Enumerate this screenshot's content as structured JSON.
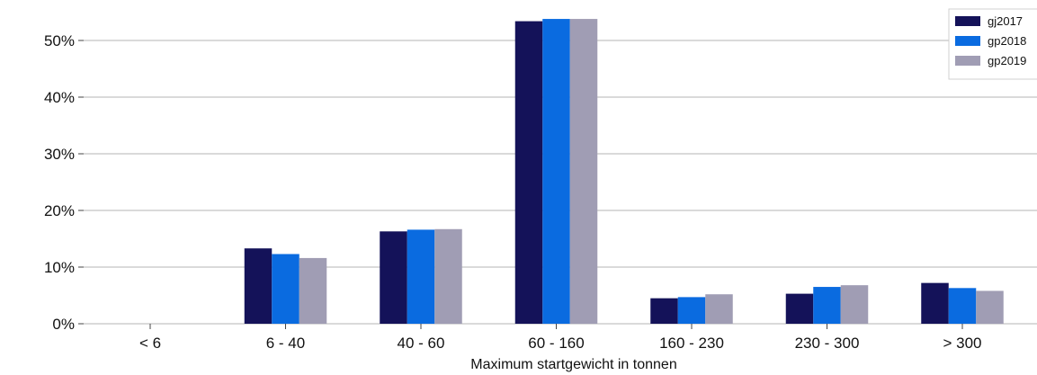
{
  "chart_data": {
    "type": "bar",
    "xlabel": "Maximum startgewicht in tonnen",
    "ylabel": "",
    "categories": [
      "< 6",
      "6 - 40",
      "40 - 60",
      "60 - 160",
      "160 - 230",
      "230 - 300",
      "> 300"
    ],
    "series": [
      {
        "name": "gj2017",
        "color": "#141259",
        "values": [
          0,
          13.3,
          16.3,
          53.4,
          4.5,
          5.3,
          7.2
        ]
      },
      {
        "name": "gp2018",
        "color": "#0a6be0",
        "values": [
          0,
          12.3,
          16.6,
          53.8,
          4.7,
          6.5,
          6.3
        ]
      },
      {
        "name": "gp2019",
        "color": "#a09db4",
        "values": [
          0,
          11.6,
          16.7,
          53.8,
          5.2,
          6.8,
          5.8
        ]
      }
    ],
    "yticks": [
      "0%",
      "10%",
      "20%",
      "30%",
      "40%",
      "50%"
    ],
    "ylim": [
      0,
      57
    ],
    "grid": "horizontal",
    "legend_position": "top-right",
    "legend_labels_shown": [
      "gj2017",
      "gp2018",
      "gp2019"
    ]
  }
}
